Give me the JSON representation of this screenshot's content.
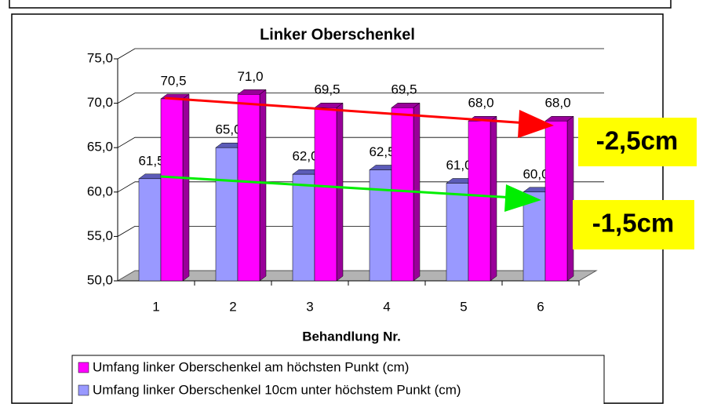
{
  "chart_data": {
    "type": "bar3d",
    "title": "Linker Oberschenkel",
    "x_label": "Behandlung Nr.",
    "categories": [
      "1",
      "2",
      "3",
      "4",
      "5",
      "6"
    ],
    "series": [
      {
        "name": "Umfang linker Oberschenkel am höchsten Punkt (cm)",
        "color": "#ff00ff",
        "side_color": "#990099",
        "values": [
          70.5,
          71.0,
          69.5,
          69.5,
          68.0,
          68.0
        ],
        "value_labels": [
          "70,5",
          "71,0",
          "69,5",
          "69,5",
          "68,0",
          "68,0"
        ]
      },
      {
        "name": "Umfang linker Oberschenkel 10cm unter höchstem Punkt (cm)",
        "color": "#9999ff",
        "side_color": "#5c5cb8",
        "values": [
          61.5,
          65.0,
          62.0,
          62.5,
          61.0,
          60.0
        ],
        "value_labels": [
          "61,5",
          "65,0",
          "62,0",
          "62,5",
          "61,0",
          "60,0"
        ]
      }
    ],
    "ylim": [
      50,
      75
    ],
    "yticks": [
      {
        "value": 50,
        "label": "50,0"
      },
      {
        "value": 55,
        "label": "55,0"
      },
      {
        "value": 60,
        "label": "60,0"
      },
      {
        "value": 65,
        "label": "65,0"
      },
      {
        "value": 70,
        "label": "70,0"
      },
      {
        "value": 75,
        "label": "75,0"
      }
    ],
    "grid": true,
    "annotations": [
      "-2,5cm",
      "-1,5cm"
    ]
  }
}
